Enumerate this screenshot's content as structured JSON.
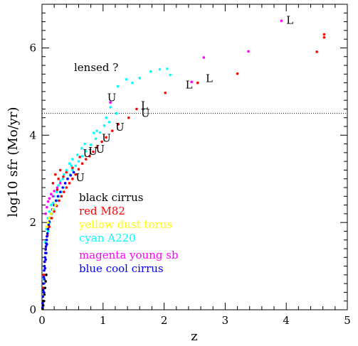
{
  "chart_data": {
    "type": "scatter",
    "xlabel": "z",
    "ylabel": "log10 sfr (Mo/yr)",
    "xlim": [
      0,
      5
    ],
    "ylim": [
      0,
      7
    ],
    "x_ticks": [
      "0",
      "1",
      "2",
      "3",
      "4",
      "5"
    ],
    "y_ticks": [
      "0",
      "2",
      "4",
      "6"
    ],
    "threshold_line": {
      "y": 4.5,
      "style": "dotted"
    },
    "annotation": "lensed ?",
    "legend": [
      {
        "label": "black cirrus",
        "color": "#000000"
      },
      {
        "label": "red M82",
        "color": "#ff0000"
      },
      {
        "label": "yellow dust torus",
        "color": "#ffff00"
      },
      {
        "label": "cyan A220",
        "color": "#00ffff"
      },
      {
        "label": "magenta young sb",
        "color": "#ff00ff"
      },
      {
        "label": "blue cool cirrus",
        "color": "#0000ff"
      }
    ],
    "series": [
      {
        "name": "cyan A220",
        "color": "#00ffff",
        "points": [
          [
            1.24,
            5.12
          ],
          [
            1.38,
            5.28
          ],
          [
            1.48,
            5.2
          ],
          [
            1.6,
            5.31
          ],
          [
            1.78,
            5.46
          ],
          [
            1.93,
            5.51
          ],
          [
            2.05,
            5.52
          ],
          [
            2.1,
            5.38
          ],
          [
            1.12,
            4.64
          ],
          [
            1.22,
            4.5
          ],
          [
            1.1,
            4.3
          ],
          [
            1.02,
            4.22
          ],
          [
            0.95,
            4.06
          ],
          [
            0.88,
            3.92
          ],
          [
            0.8,
            3.78
          ],
          [
            0.72,
            3.63
          ],
          [
            0.66,
            3.52
          ],
          [
            0.6,
            3.4
          ],
          [
            0.55,
            3.3
          ],
          [
            0.5,
            3.2
          ],
          [
            0.46,
            3.1
          ],
          [
            0.42,
            3.0
          ],
          [
            0.38,
            2.9
          ],
          [
            0.35,
            2.8
          ],
          [
            0.32,
            2.7
          ],
          [
            0.28,
            2.6
          ],
          [
            0.25,
            2.5
          ],
          [
            0.22,
            2.4
          ],
          [
            0.19,
            2.3
          ],
          [
            0.16,
            2.2
          ],
          [
            0.13,
            2.0
          ],
          [
            0.1,
            1.8
          ],
          [
            0.08,
            1.6
          ],
          [
            0.06,
            1.4
          ],
          [
            0.04,
            1.1
          ],
          [
            0.02,
            0.7
          ],
          [
            0.5,
            3.45
          ],
          [
            0.45,
            3.35
          ],
          [
            0.4,
            3.2
          ],
          [
            0.36,
            3.1
          ],
          [
            0.3,
            2.95
          ],
          [
            0.27,
            2.85
          ],
          [
            0.2,
            2.6
          ],
          [
            0.15,
            2.4
          ],
          [
            0.12,
            2.25
          ],
          [
            0.65,
            3.7
          ],
          [
            0.7,
            3.8
          ],
          [
            0.85,
            4.05
          ],
          [
            0.9,
            4.1
          ],
          [
            1.05,
            4.4
          ],
          [
            0.58,
            3.55
          ],
          [
            0.48,
            3.3
          ],
          [
            0.34,
            3.0
          ],
          [
            0.24,
            2.7
          ],
          [
            0.18,
            2.45
          ],
          [
            0.1,
            2.1
          ],
          [
            0.07,
            1.85
          ],
          [
            0.05,
            1.55
          ]
        ]
      },
      {
        "name": "red M82",
        "color": "#ff0000",
        "points": [
          [
            4.62,
            6.31
          ],
          [
            4.62,
            6.24
          ],
          [
            4.5,
            5.91
          ],
          [
            3.2,
            5.41
          ],
          [
            2.55,
            5.2
          ],
          [
            2.02,
            4.97
          ],
          [
            1.55,
            4.6
          ],
          [
            1.42,
            4.4
          ],
          [
            1.25,
            4.25
          ],
          [
            1.15,
            4.1
          ],
          [
            1.05,
            3.95
          ],
          [
            0.98,
            3.85
          ],
          [
            0.9,
            3.72
          ],
          [
            0.84,
            3.62
          ],
          [
            0.78,
            3.52
          ],
          [
            0.72,
            3.45
          ],
          [
            0.66,
            3.35
          ],
          [
            0.6,
            3.22
          ],
          [
            0.55,
            3.1
          ],
          [
            0.5,
            3.0
          ],
          [
            0.45,
            2.9
          ],
          [
            0.4,
            2.8
          ],
          [
            0.36,
            2.7
          ],
          [
            0.32,
            2.6
          ],
          [
            0.28,
            2.5
          ],
          [
            0.24,
            2.38
          ],
          [
            0.2,
            2.25
          ],
          [
            0.16,
            2.1
          ],
          [
            0.12,
            1.9
          ],
          [
            0.09,
            1.7
          ],
          [
            0.06,
            1.4
          ],
          [
            0.04,
            1.1
          ],
          [
            0.03,
            0.8
          ],
          [
            0.02,
            0.5
          ],
          [
            0.35,
            3.05
          ],
          [
            0.3,
            3.2
          ],
          [
            0.27,
            3.0
          ],
          [
            0.22,
            3.1
          ],
          [
            0.18,
            2.9
          ],
          [
            0.25,
            2.75
          ],
          [
            0.4,
            3.15
          ],
          [
            0.62,
            3.5
          ],
          [
            0.5,
            3.25
          ]
        ]
      },
      {
        "name": "magenta young sb",
        "color": "#ff00ff",
        "points": [
          [
            3.92,
            6.62
          ],
          [
            3.38,
            5.92
          ],
          [
            2.65,
            5.78
          ],
          [
            2.45,
            5.22
          ],
          [
            1.12,
            4.75
          ],
          [
            0.2,
            2.72
          ],
          [
            0.15,
            2.65
          ],
          [
            0.12,
            2.55
          ],
          [
            0.1,
            2.48
          ],
          [
            0.3,
            2.9
          ],
          [
            0.08,
            2.35
          ],
          [
            0.06,
            2.2
          ],
          [
            0.25,
            2.8
          ],
          [
            0.18,
            2.6
          ]
        ]
      },
      {
        "name": "blue cool cirrus",
        "color": "#0000ff",
        "points": [
          [
            0.01,
            0.05
          ],
          [
            0.01,
            0.15
          ],
          [
            0.015,
            0.3
          ],
          [
            0.02,
            0.45
          ],
          [
            0.025,
            0.6
          ],
          [
            0.03,
            0.75
          ],
          [
            0.035,
            0.9
          ],
          [
            0.04,
            1.0
          ],
          [
            0.045,
            1.1
          ],
          [
            0.05,
            1.2
          ],
          [
            0.055,
            1.3
          ],
          [
            0.06,
            1.38
          ],
          [
            0.065,
            1.45
          ],
          [
            0.07,
            1.52
          ],
          [
            0.075,
            1.6
          ],
          [
            0.08,
            1.68
          ],
          [
            0.09,
            1.75
          ],
          [
            0.1,
            1.85
          ],
          [
            0.11,
            1.95
          ],
          [
            0.12,
            2.02
          ],
          [
            0.13,
            2.1
          ],
          [
            0.15,
            2.2
          ],
          [
            0.17,
            2.3
          ],
          [
            0.2,
            2.4
          ],
          [
            0.23,
            2.5
          ],
          [
            0.26,
            2.6
          ],
          [
            0.3,
            2.7
          ],
          [
            0.34,
            2.8
          ],
          [
            0.38,
            2.9
          ],
          [
            0.42,
            3.0
          ],
          [
            0.47,
            3.08
          ],
          [
            0.52,
            3.15
          ],
          [
            0.02,
            0.2
          ],
          [
            0.03,
            0.4
          ],
          [
            0.04,
            0.7
          ],
          [
            0.05,
            0.95
          ],
          [
            0.06,
            1.15
          ],
          [
            0.07,
            1.3
          ],
          [
            0.08,
            1.5
          ]
        ]
      },
      {
        "name": "black cirrus",
        "color": "#000000",
        "points": [
          [
            0.01,
            0.02
          ],
          [
            0.02,
            0.1
          ],
          [
            0.03,
            0.2
          ],
          [
            0.04,
            0.35
          ],
          [
            0.05,
            0.5
          ],
          [
            0.06,
            0.65
          ],
          [
            0.07,
            0.8
          ]
        ]
      },
      {
        "name": "yellow dust torus",
        "color": "#ffff00",
        "points": [
          [
            0.08,
            1.9
          ],
          [
            0.1,
            2.0
          ],
          [
            0.12,
            2.1
          ],
          [
            0.15,
            2.2
          ],
          [
            0.18,
            2.3
          ],
          [
            0.22,
            2.4
          ]
        ]
      }
    ],
    "point_labels": [
      {
        "text": "L",
        "x": 4.0,
        "y": 6.55
      },
      {
        "text": "L",
        "x": 2.68,
        "y": 5.22
      },
      {
        "text": "L",
        "x": 2.35,
        "y": 5.07
      },
      {
        "text": "L",
        "x": 1.62,
        "y": 4.6
      },
      {
        "text": "U",
        "x": 1.62,
        "y": 4.42
      },
      {
        "text": "U",
        "x": 1.07,
        "y": 4.78
      },
      {
        "text": "U",
        "x": 1.2,
        "y": 4.1
      },
      {
        "text": "U",
        "x": 0.98,
        "y": 3.85
      },
      {
        "text": "U",
        "x": 0.88,
        "y": 3.6
      },
      {
        "text": "U",
        "x": 0.76,
        "y": 3.55
      },
      {
        "text": "U",
        "x": 0.67,
        "y": 3.5
      },
      {
        "text": "U",
        "x": 0.55,
        "y": 2.95
      }
    ]
  }
}
